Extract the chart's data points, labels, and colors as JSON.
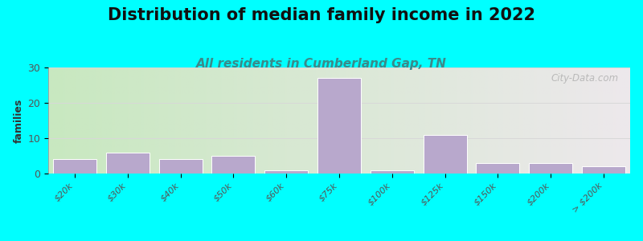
{
  "title": "Distribution of median family income in 2022",
  "subtitle": "All residents in Cumberland Gap, TN",
  "categories": [
    "$20k",
    "$30k",
    "$40k",
    "$50k",
    "$60k",
    "$75k",
    "$100k",
    "$125k",
    "$150k",
    "$200k",
    "> $200k"
  ],
  "values": [
    4,
    6,
    4,
    5,
    1,
    27,
    1,
    11,
    3,
    3,
    2
  ],
  "bar_color": "#b8a8cc",
  "bar_edgecolor": "#ffffff",
  "background_outer": "#00ffff",
  "bg_left_color": "#c8e8c0",
  "bg_right_color": "#ede8ec",
  "ylabel": "families",
  "ylim": [
    0,
    30
  ],
  "yticks": [
    0,
    10,
    20,
    30
  ],
  "title_fontsize": 15,
  "subtitle_fontsize": 11,
  "watermark": "City-Data.com",
  "grid_color": "#d8d8d8",
  "tick_label_color": "#555555"
}
